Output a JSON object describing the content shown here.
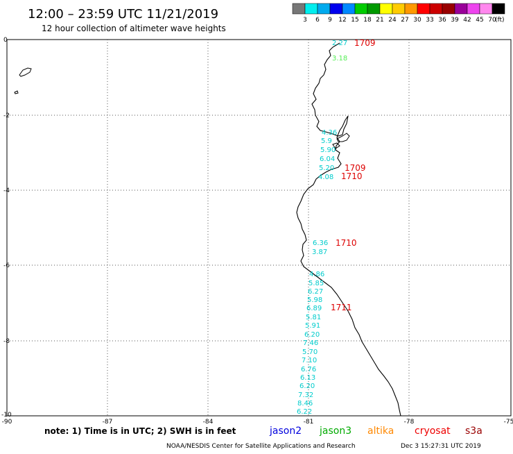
{
  "header": {
    "title": "12:00 – 23:59 UTC 11/21/2019",
    "subtitle": "12 hour collection of altimeter wave heights"
  },
  "legend": {
    "colors": [
      "#777777",
      "#00eeee",
      "#00aaee",
      "#0000ee",
      "#0088ff",
      "#00cc00",
      "#009900",
      "#ffff00",
      "#ffcc00",
      "#ff9900",
      "#ff0000",
      "#cc0000",
      "#990000",
      "#990099",
      "#ee44ee",
      "#ff88ee",
      "#000000"
    ],
    "labels": [
      "3",
      "6",
      "9",
      "12",
      "15",
      "18",
      "21",
      "24",
      "27",
      "30",
      "33",
      "36",
      "39",
      "42",
      "45",
      "70",
      "(ft)"
    ]
  },
  "map": {
    "lat_labels": [
      "0",
      "-2",
      "-4",
      "-6",
      "-8",
      "-10"
    ],
    "lon_labels": [
      "-90",
      "-87",
      "-84",
      "-81",
      "-78",
      "-75"
    ],
    "observations": [
      {
        "text": "2.27",
        "color": "#00cccc"
      },
      {
        "text": "3.18",
        "color": "#55ee55"
      },
      {
        "text": "4.36",
        "color": "#00cccc"
      },
      {
        "text": "5.9",
        "color": "#00cccc"
      },
      {
        "text": "5.90",
        "color": "#00cccc"
      },
      {
        "text": "6.04",
        "color": "#00cccc"
      },
      {
        "text": "5.20",
        "color": "#00cccc"
      },
      {
        "text": "4.08",
        "color": "#00cccc"
      },
      {
        "text": "6.36",
        "color": "#00cccc"
      },
      {
        "text": "3.87",
        "color": "#00cccc"
      },
      {
        "text": "4.86",
        "color": "#00cccc"
      },
      {
        "text": "5.85",
        "color": "#00cccc"
      },
      {
        "text": "6.27",
        "color": "#00cccc"
      },
      {
        "text": "5.98",
        "color": "#00cccc"
      },
      {
        "text": "6.89",
        "color": "#00cccc"
      },
      {
        "text": "5.81",
        "color": "#00cccc"
      },
      {
        "text": "5.91",
        "color": "#00cccc"
      },
      {
        "text": "6.20",
        "color": "#00cccc"
      },
      {
        "text": "7.46",
        "color": "#00cccc"
      },
      {
        "text": "5.70",
        "color": "#00cccc"
      },
      {
        "text": "7.10",
        "color": "#00cccc"
      },
      {
        "text": "6.76",
        "color": "#00cccc"
      },
      {
        "text": "6.13",
        "color": "#00cccc"
      },
      {
        "text": "6.20",
        "color": "#00cccc"
      },
      {
        "text": "7.32",
        "color": "#00cccc"
      },
      {
        "text": "8.46",
        "color": "#00cccc"
      },
      {
        "text": "6.22",
        "color": "#00cccc"
      }
    ],
    "pass_times": [
      "1709",
      "1709",
      "1710",
      "1710",
      "1711"
    ]
  },
  "footer": {
    "note": "note: 1) Time is in UTC; 2) SWH is in feet",
    "satellites": [
      {
        "name": "jason2",
        "color": "#0000dd"
      },
      {
        "name": "jason3",
        "color": "#00aa00"
      },
      {
        "name": "altika",
        "color": "#ff8800"
      },
      {
        "name": "cryosat",
        "color": "#ee0000"
      },
      {
        "name": "s3a",
        "color": "#990000"
      }
    ],
    "credit": "NOAA/NESDIS Center for Satellite Applications and Research",
    "timestamp": "Dec  3 15:27:31 UTC 2019"
  }
}
